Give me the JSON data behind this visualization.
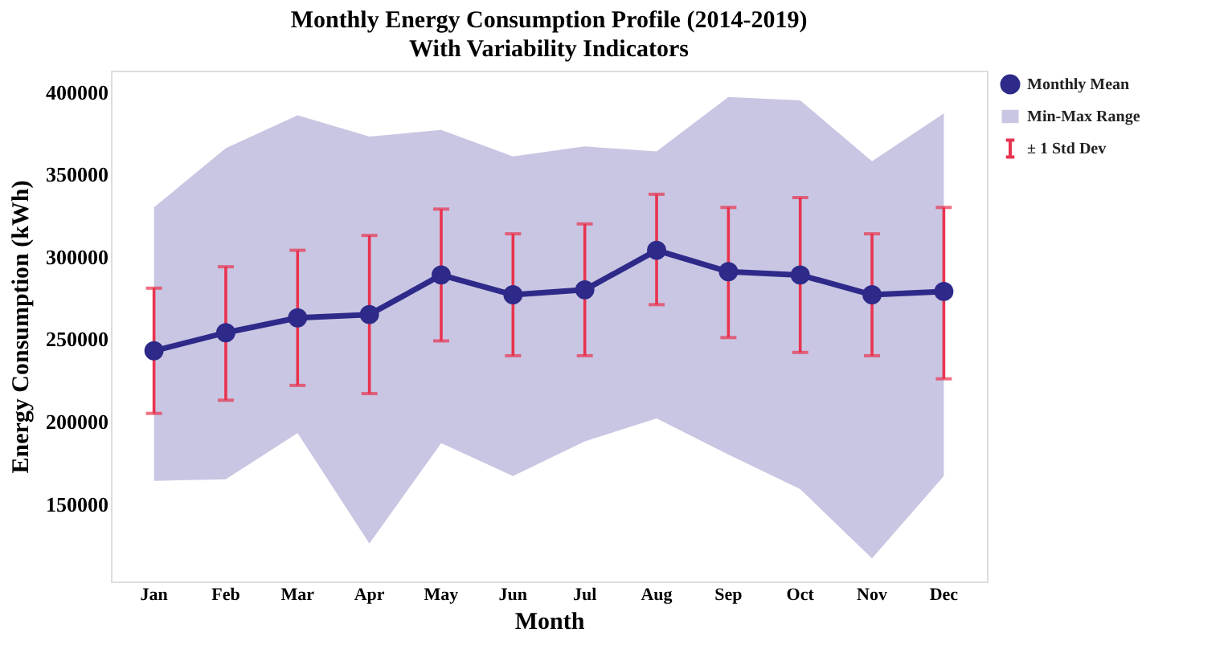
{
  "chart_data": {
    "type": "line",
    "title": "Monthly Energy Consumption Profile (2014-2019)",
    "subtitle": "With Variability Indicators",
    "xlabel": "Month",
    "ylabel": "Energy Consumption (kWh)",
    "categories": [
      "Jan",
      "Feb",
      "Mar",
      "Apr",
      "May",
      "Jun",
      "Jul",
      "Aug",
      "Sep",
      "Oct",
      "Nov",
      "Dec"
    ],
    "series": [
      {
        "name": "Monthly Mean",
        "color": "#2e2a8a",
        "values": [
          243000,
          254000,
          263000,
          265000,
          289000,
          277000,
          280000,
          304000,
          291000,
          289000,
          277000,
          279000
        ],
        "lower": [
          164000,
          165000,
          193000,
          126000,
          187000,
          167000,
          188000,
          202000,
          180000,
          159000,
          117000,
          167000
        ],
        "upper": [
          330000,
          366000,
          386000,
          373000,
          377000,
          361000,
          367000,
          364000,
          397000,
          395000,
          358000,
          387000
        ],
        "errors": [
          [
            205000,
            281000
          ],
          [
            213000,
            294000
          ],
          [
            222000,
            304000
          ],
          [
            217000,
            313000
          ],
          [
            249000,
            329000
          ],
          [
            240000,
            314000
          ],
          [
            240000,
            320000
          ],
          [
            271000,
            338000
          ],
          [
            251000,
            330000
          ],
          [
            242000,
            336000
          ],
          [
            240000,
            314000
          ],
          [
            226000,
            330000
          ]
        ]
      }
    ],
    "annotations": [
      "Min-Max Range",
      "± 1 Std Dev"
    ],
    "ylim": [
      103000,
      413000
    ],
    "yticks": [
      150000,
      200000,
      250000,
      300000,
      350000,
      400000
    ],
    "marker": "circle",
    "grid": false,
    "legend": "top right"
  }
}
